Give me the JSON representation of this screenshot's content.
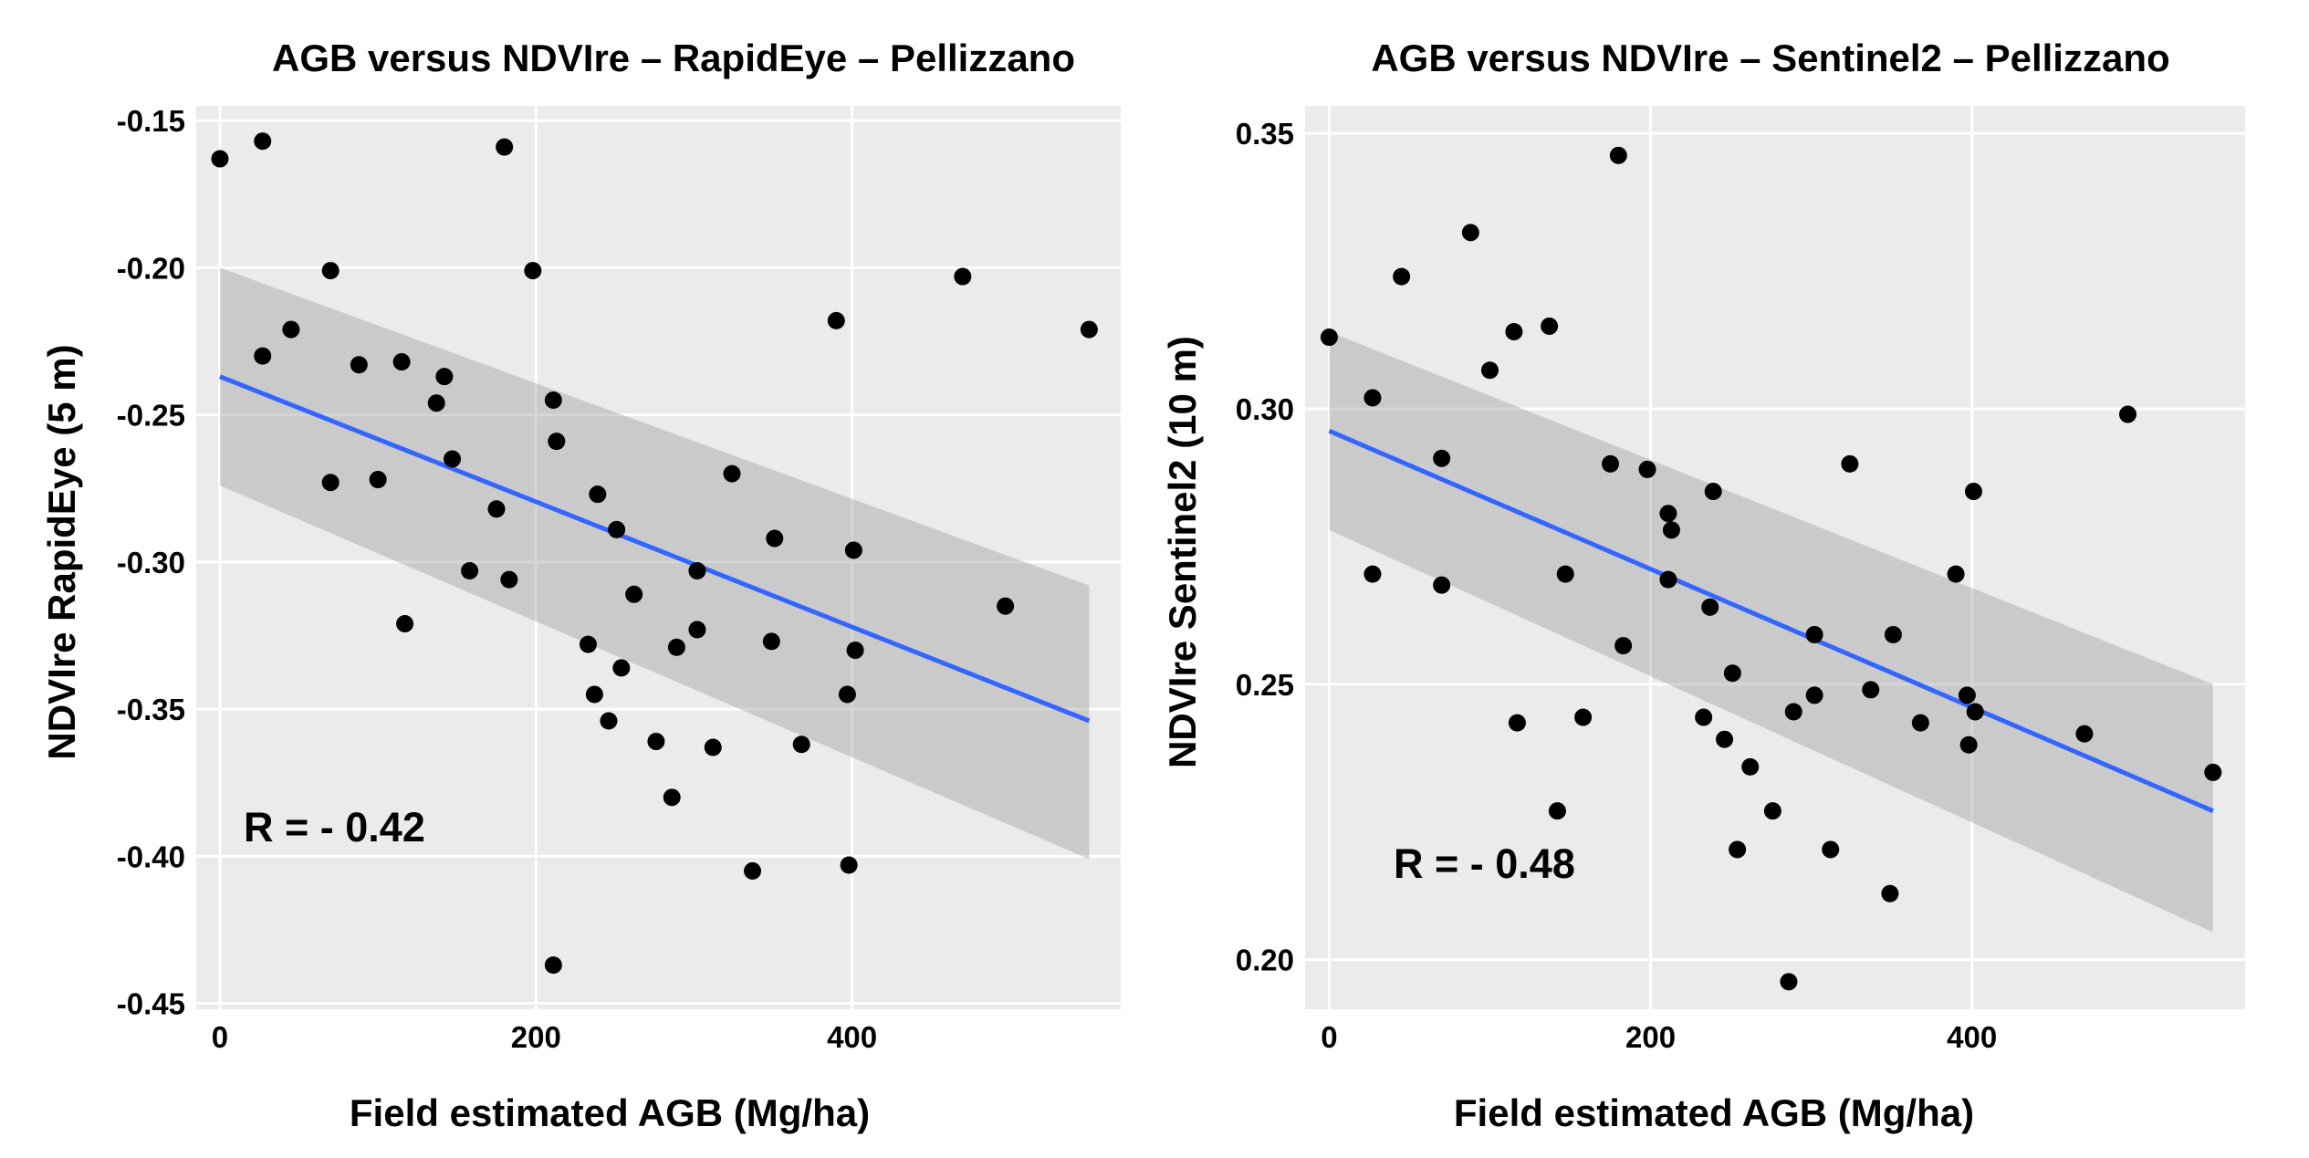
{
  "chart_data": [
    {
      "type": "scatter",
      "title": "AGB versus NDVIre – RapidEye – Pellizzano",
      "xlabel": "Field estimated AGB (Mg/ha)",
      "ylabel": "NDVIre RapidEye (5 m)",
      "xlim": [
        -15,
        570
      ],
      "ylim": [
        -0.452,
        -0.145
      ],
      "xticks": [
        0,
        200,
        400
      ],
      "xtick_labels": [
        "0",
        "200",
        "400"
      ],
      "yticks": [
        -0.45,
        -0.4,
        -0.35,
        -0.3,
        -0.25,
        -0.2,
        -0.15
      ],
      "ytick_labels": [
        "-0.45",
        "-0.40",
        "-0.35",
        "-0.30",
        "-0.25",
        "-0.20",
        "-0.15"
      ],
      "grid": true,
      "annotation": "R = - 0.42",
      "regression": {
        "x": [
          0,
          550
        ],
        "y": [
          -0.237,
          -0.354
        ],
        "ci_lower": [
          -0.274,
          -0.401
        ],
        "ci_upper": [
          -0.2,
          -0.308
        ],
        "color": "#3366ff"
      },
      "points": [
        [
          0,
          -0.163
        ],
        [
          27,
          -0.157
        ],
        [
          27,
          -0.23
        ],
        [
          45,
          -0.221
        ],
        [
          70,
          -0.201
        ],
        [
          70,
          -0.273
        ],
        [
          88,
          -0.233
        ],
        [
          100,
          -0.272
        ],
        [
          115,
          -0.232
        ],
        [
          117,
          -0.321
        ],
        [
          137,
          -0.246
        ],
        [
          142,
          -0.237
        ],
        [
          147,
          -0.265
        ],
        [
          158,
          -0.303
        ],
        [
          175,
          -0.282
        ],
        [
          180,
          -0.159
        ],
        [
          183,
          -0.306
        ],
        [
          198,
          -0.201
        ],
        [
          211,
          -0.245
        ],
        [
          213,
          -0.259
        ],
        [
          211,
          -0.437
        ],
        [
          233,
          -0.328
        ],
        [
          237,
          -0.345
        ],
        [
          239,
          -0.277
        ],
        [
          246,
          -0.354
        ],
        [
          251,
          -0.289
        ],
        [
          254,
          -0.336
        ],
        [
          262,
          -0.311
        ],
        [
          276,
          -0.361
        ],
        [
          286,
          -0.38
        ],
        [
          289,
          -0.329
        ],
        [
          302,
          -0.303
        ],
        [
          302,
          -0.323
        ],
        [
          312,
          -0.363
        ],
        [
          324,
          -0.27
        ],
        [
          337,
          -0.405
        ],
        [
          349,
          -0.327
        ],
        [
          351,
          -0.292
        ],
        [
          368,
          -0.362
        ],
        [
          390,
          -0.218
        ],
        [
          397,
          -0.345
        ],
        [
          398,
          -0.403
        ],
        [
          401,
          -0.296
        ],
        [
          402,
          -0.33
        ],
        [
          470,
          -0.203
        ],
        [
          497,
          -0.315
        ],
        [
          550,
          -0.221
        ]
      ]
    },
    {
      "type": "scatter",
      "title": "AGB versus NDVIre – Sentinel2 – Pellizzano",
      "xlabel": "Field estimated AGB (Mg/ha)",
      "ylabel": "NDVIre Sentinel2 (10 m)",
      "xlim": [
        -15,
        570
      ],
      "ylim": [
        0.191,
        0.355
      ],
      "xticks": [
        0,
        200,
        400
      ],
      "xtick_labels": [
        "0",
        "200",
        "400"
      ],
      "yticks": [
        0.2,
        0.25,
        0.3,
        0.35
      ],
      "ytick_labels": [
        "0.20",
        "0.25",
        "0.30",
        "0.35"
      ],
      "grid": true,
      "annotation": "R = - 0.48",
      "regression": {
        "x": [
          0,
          550
        ],
        "y": [
          0.296,
          0.227
        ],
        "ci_lower": [
          0.278,
          0.205
        ],
        "ci_upper": [
          0.314,
          0.25
        ],
        "color": "#3366ff"
      },
      "points": [
        [
          0,
          0.313
        ],
        [
          27,
          0.302
        ],
        [
          27,
          0.27
        ],
        [
          45,
          0.324
        ],
        [
          70,
          0.291
        ],
        [
          70,
          0.268
        ],
        [
          88,
          0.332
        ],
        [
          100,
          0.307
        ],
        [
          115,
          0.314
        ],
        [
          117,
          0.243
        ],
        [
          137,
          0.315
        ],
        [
          142,
          0.227
        ],
        [
          147,
          0.27
        ],
        [
          158,
          0.244
        ],
        [
          175,
          0.29
        ],
        [
          180,
          0.346
        ],
        [
          183,
          0.257
        ],
        [
          198,
          0.289
        ],
        [
          211,
          0.281
        ],
        [
          213,
          0.278
        ],
        [
          211,
          0.269
        ],
        [
          233,
          0.244
        ],
        [
          237,
          0.264
        ],
        [
          239,
          0.285
        ],
        [
          246,
          0.24
        ],
        [
          251,
          0.252
        ],
        [
          254,
          0.22
        ],
        [
          262,
          0.235
        ],
        [
          276,
          0.227
        ],
        [
          286,
          0.196
        ],
        [
          289,
          0.245
        ],
        [
          302,
          0.259
        ],
        [
          302,
          0.248
        ],
        [
          312,
          0.22
        ],
        [
          324,
          0.29
        ],
        [
          337,
          0.249
        ],
        [
          349,
          0.212
        ],
        [
          351,
          0.259
        ],
        [
          368,
          0.243
        ],
        [
          390,
          0.27
        ],
        [
          397,
          0.248
        ],
        [
          398,
          0.239
        ],
        [
          401,
          0.285
        ],
        [
          402,
          0.245
        ],
        [
          470,
          0.241
        ],
        [
          497,
          0.299
        ],
        [
          550,
          0.234
        ]
      ]
    }
  ]
}
